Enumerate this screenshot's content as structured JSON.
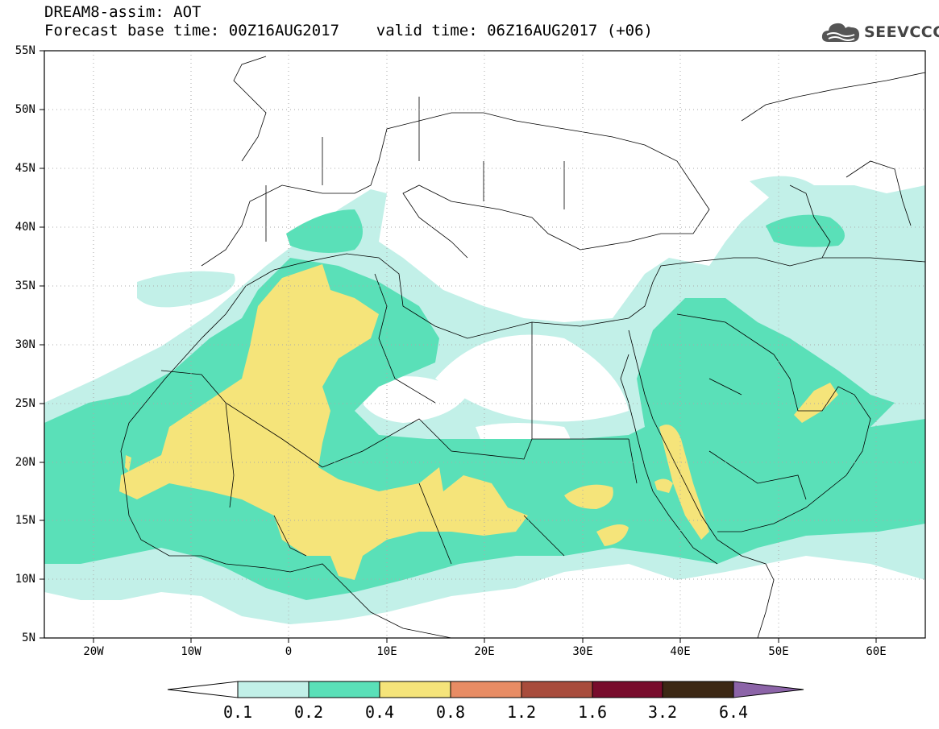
{
  "title": {
    "line1": "DREAM8-assim: AOT",
    "line2": "Forecast base time: 00Z16AUG2017    valid time: 06Z16AUG2017 (+06)"
  },
  "logo": {
    "text": "SEEVCCC",
    "icon": "cloud-icon"
  },
  "map": {
    "lon_range": [
      -25,
      65
    ],
    "lat_range": [
      5,
      55
    ],
    "lat_labels": [
      "55N",
      "50N",
      "45N",
      "40N",
      "35N",
      "30N",
      "25N",
      "20N",
      "15N",
      "10N",
      "5N"
    ],
    "lon_labels": [
      "20W",
      "10W",
      "0",
      "10E",
      "20E",
      "30E",
      "40E",
      "50E",
      "60E"
    ],
    "grid": "dotted"
  },
  "colorbar": {
    "levels": [
      "0.1",
      "0.2",
      "0.4",
      "0.8",
      "1.2",
      "1.6",
      "3.2",
      "6.4"
    ],
    "colors": {
      "under": "#ffffff",
      "c1": "#c2f0e8",
      "c2": "#5ae0b8",
      "c3": "#f5e47a",
      "c4": "#e88c64",
      "c5": "#a84c3c",
      "c6": "#780c2c",
      "c7": "#3c2814",
      "over": "#8c64a8"
    }
  }
}
